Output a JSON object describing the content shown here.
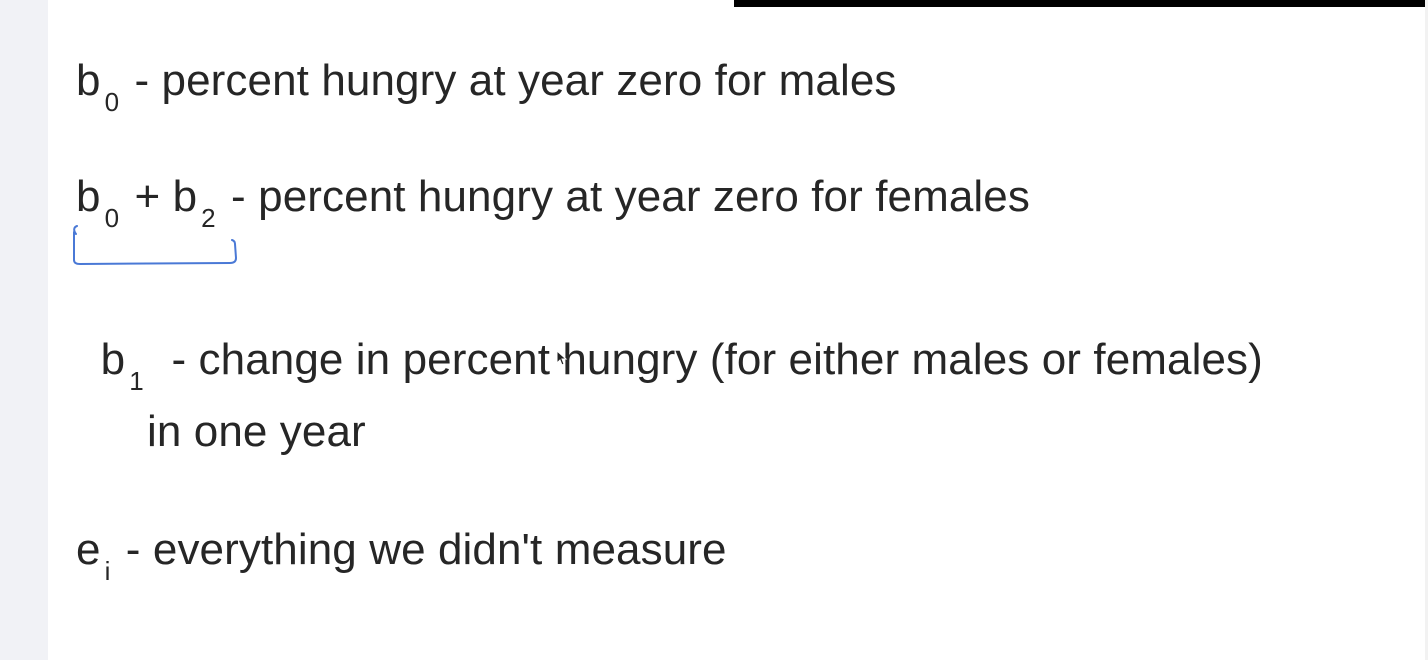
{
  "lines": [
    {
      "symbol": "b",
      "sub": "0",
      "text": " - percent hungry at year zero for males"
    },
    {
      "symbol": "b",
      "sub": "0",
      "mid": " + ",
      "symbol2": "b",
      "sub2": "2",
      "text": " - percent hungry at year zero for females"
    },
    {
      "symbol": "b",
      "sub": "1",
      "text": "  - change in percent hungry (for either males or females)"
    },
    {
      "text": "in one year"
    },
    {
      "symbol": "e",
      "sub": "i",
      "text": " - everything we didn't measure"
    }
  ],
  "annotation": {
    "color": "#4a79d6",
    "icon": "bracket-underline"
  },
  "colors": {
    "text": "#262626",
    "gutter": "#f1f2f6",
    "top_bar": "#000000"
  }
}
